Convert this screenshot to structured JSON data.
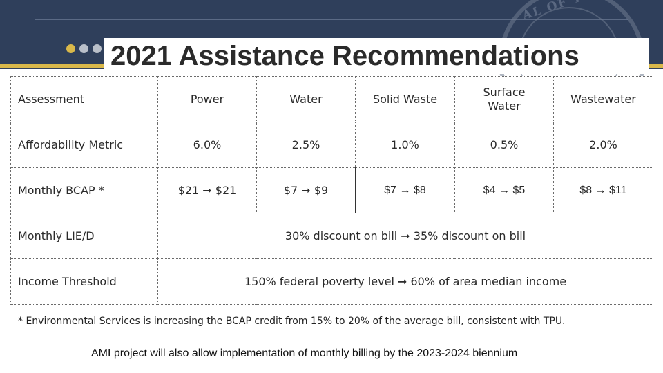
{
  "header": {
    "title": "2021 Assistance Recommendations",
    "seal_text": "AL OF THE CITY OF TACO",
    "dot_colors": [
      "#d9b84a",
      "#b9bfc9",
      "#b9bfc9"
    ],
    "band_color": "#2f3f5b",
    "accent_color": "#d9b84a"
  },
  "table": {
    "header": {
      "label": "Assessment",
      "columns": [
        "Power",
        "Water",
        "Solid Waste",
        "Surface\nWater",
        "Wastewater"
      ]
    },
    "affordability": {
      "label": "Affordability Metric",
      "values": [
        "6.0%",
        "2.5%",
        "1.0%",
        "0.5%",
        "2.0%"
      ]
    },
    "bcap": {
      "label": "Monthly BCAP *",
      "values": [
        "$21 ➞ $21",
        "$7 ➞ $9",
        "$7 → $8",
        "$4 → $5",
        "$8 → $11"
      ]
    },
    "lie": {
      "label": "Monthly LIE/D",
      "value": "30% discount on bill ➞ 35% discount on bill"
    },
    "threshold": {
      "label": "Income Threshold",
      "value": "150% federal poverty level ➞ 60% of area median income"
    }
  },
  "footnote": "* Environmental Services is increasing the BCAP credit from 15% to 20% of the average bill, consistent with TPU.",
  "ami_note": "AMI project will also allow implementation of monthly billing by the 2023-2024 biennium"
}
